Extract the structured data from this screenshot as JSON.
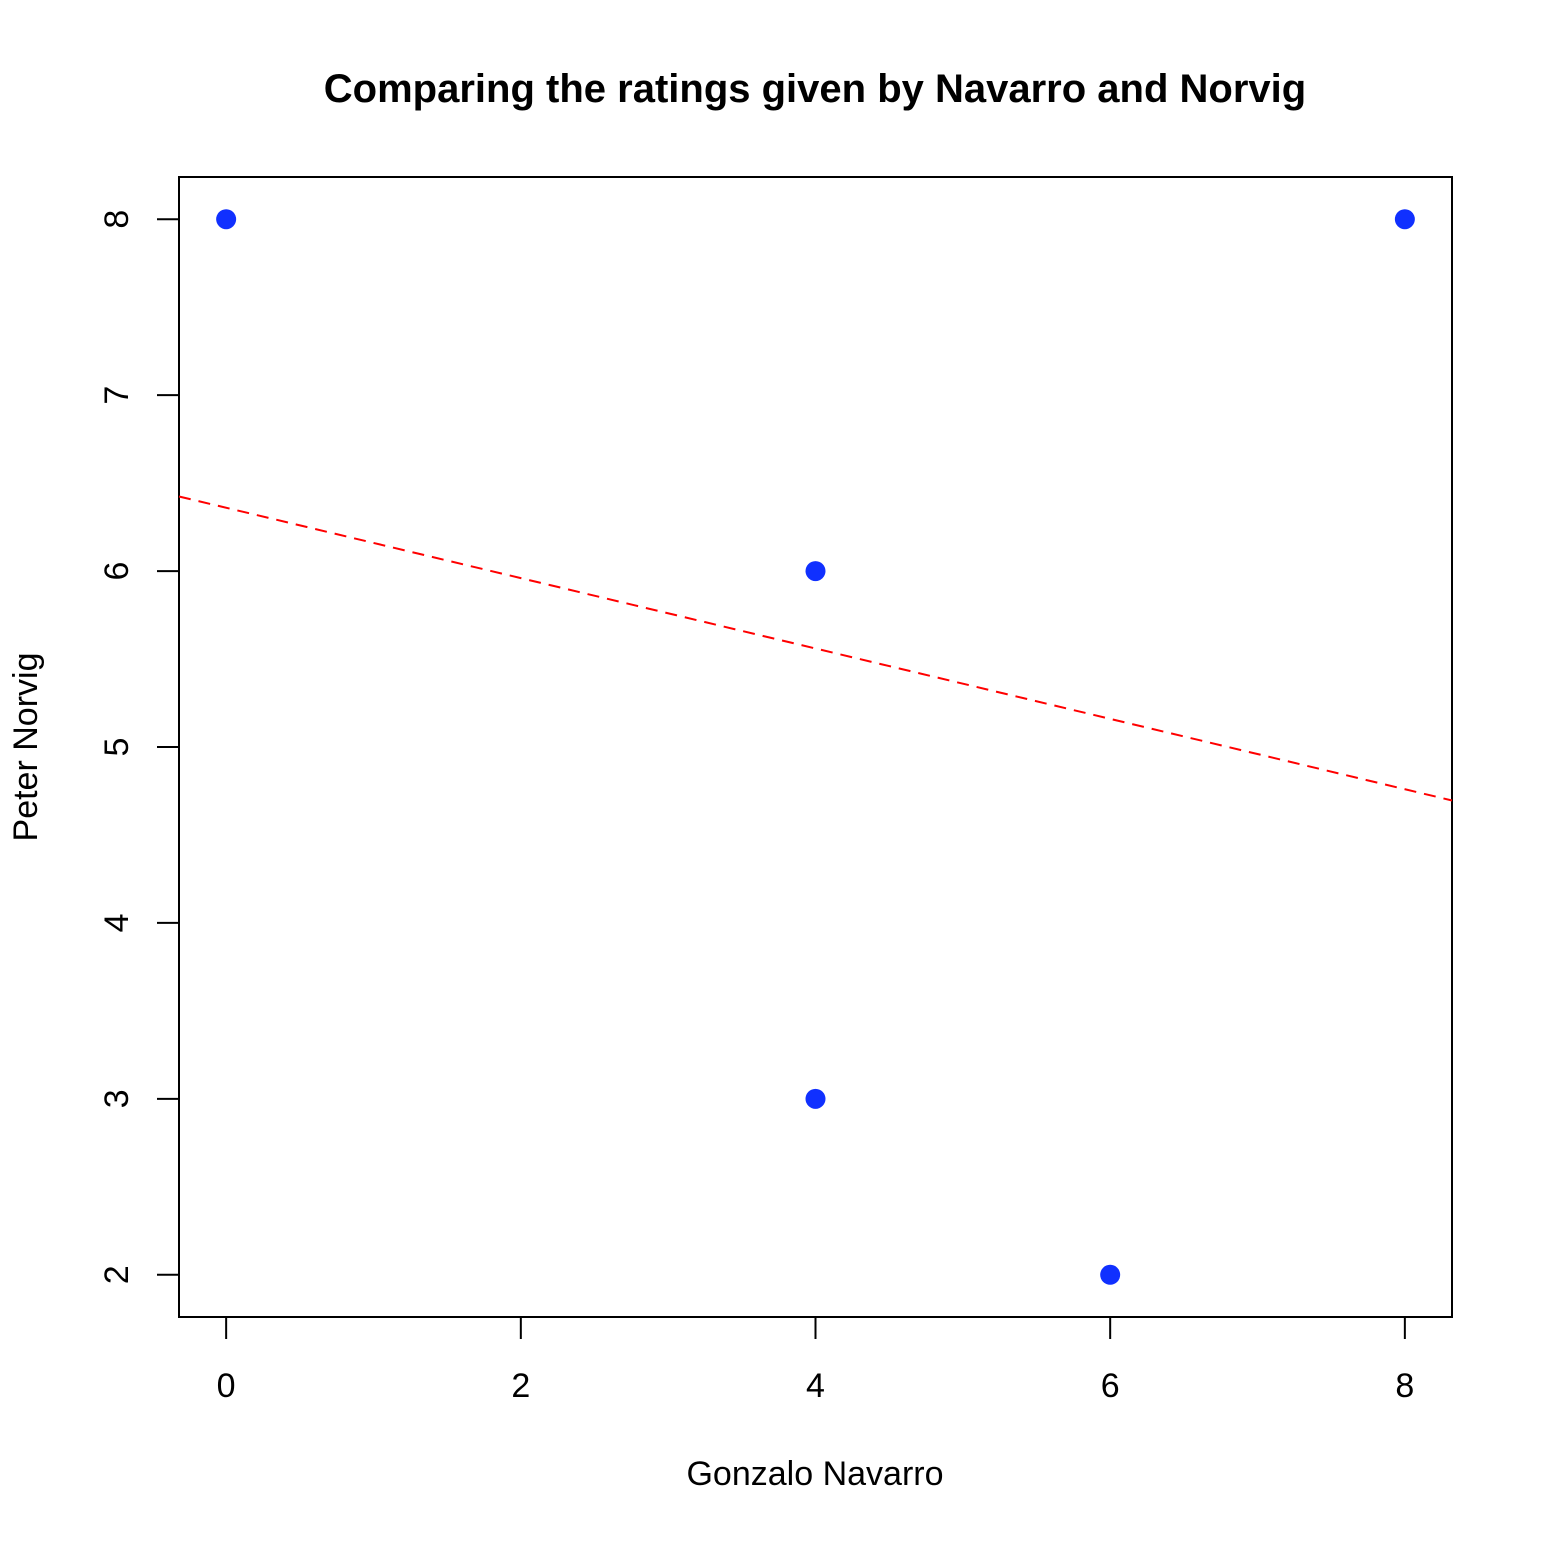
{
  "chart_data": {
    "type": "scatter",
    "title": "Comparing the ratings given by Navarro and Norvig",
    "xlabel": "Gonzalo Navarro",
    "ylabel": "Peter Norvig",
    "xlim": [
      -0.32,
      8.32
    ],
    "ylim": [
      1.76,
      8.24
    ],
    "xticks": [
      0,
      2,
      4,
      6,
      8
    ],
    "yticks": [
      2,
      3,
      4,
      5,
      6,
      7,
      8
    ],
    "grid": false,
    "legend": "none",
    "points": [
      {
        "x": 0,
        "y": 8
      },
      {
        "x": 4,
        "y": 6
      },
      {
        "x": 4,
        "y": 3
      },
      {
        "x": 6,
        "y": 2
      },
      {
        "x": 8,
        "y": 8
      }
    ],
    "regression_line": {
      "intercept": 6.36,
      "slope": -0.2,
      "style": "dashed",
      "color": "#ff0000"
    },
    "colors": {
      "points": "#1030ff",
      "axes": "#000000"
    }
  }
}
